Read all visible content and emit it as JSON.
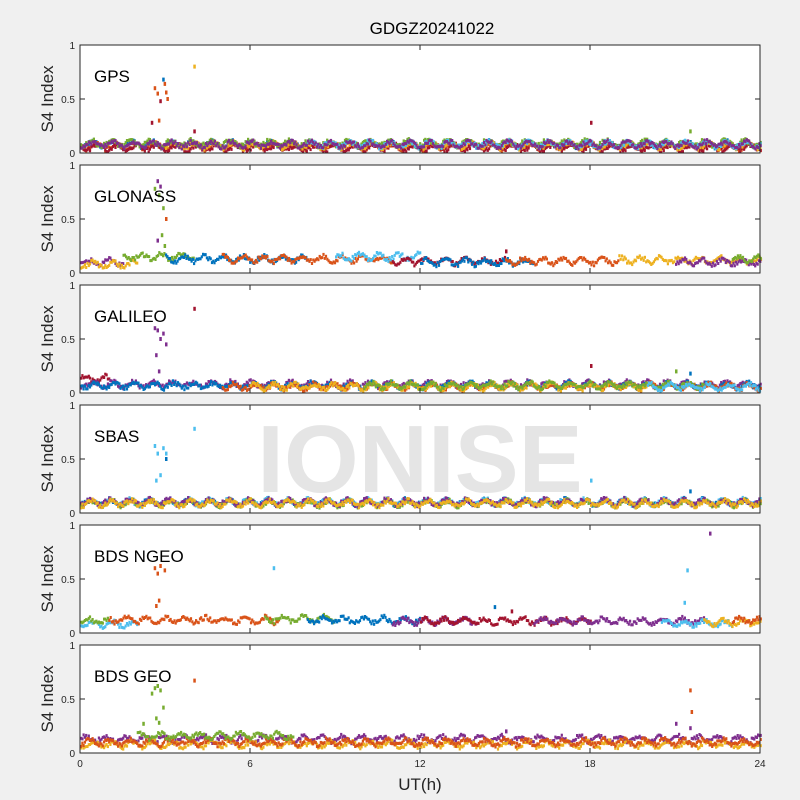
{
  "chart_data": {
    "type": "scatter",
    "title": "GDGZ20241022",
    "xlabel": "UT(h)",
    "ylabel": "S4 Index",
    "xlim": [
      0,
      24
    ],
    "ylim": [
      0,
      1
    ],
    "xticks": [
      "0",
      "6",
      "12",
      "18",
      "24"
    ],
    "xtick_values": [
      0,
      6,
      12,
      18,
      24
    ],
    "yticks": [
      "0",
      "0.5",
      "1"
    ],
    "ytick_values": [
      0,
      0.5,
      1
    ],
    "watermark": "IONISE",
    "colors": {
      "blue": "#0072BD",
      "orange": "#D95319",
      "yellow": "#EDB120",
      "purple": "#7E2F8E",
      "green": "#77AC30",
      "lightblue": "#4DBEEE",
      "darkred": "#A2142F"
    },
    "panels": [
      {
        "name": "GPS",
        "baseline_series": [
          [
            "blue",
            0,
            24,
            0.08
          ],
          [
            "orange",
            0,
            24,
            0.06
          ],
          [
            "darkred",
            0,
            24,
            0.05
          ],
          [
            "yellow",
            3,
            24,
            0.07
          ],
          [
            "green",
            0,
            24,
            0.09
          ],
          [
            "lightblue",
            8,
            24,
            0.08
          ],
          [
            "purple",
            0,
            24,
            0.08
          ]
        ],
        "spikes": [
          [
            "orange",
            2.6,
            0.6
          ],
          [
            "orange",
            2.7,
            0.55
          ],
          [
            "orange",
            2.75,
            0.3
          ],
          [
            "darkred",
            2.8,
            0.48
          ],
          [
            "blue",
            2.9,
            0.68
          ],
          [
            "orange",
            2.95,
            0.64
          ],
          [
            "orange",
            3.0,
            0.56
          ],
          [
            "orange",
            3.05,
            0.5
          ],
          [
            "darkred",
            2.5,
            0.28
          ],
          [
            "yellow",
            4.0,
            0.8
          ],
          [
            "darkred",
            4.0,
            0.2
          ],
          [
            "darkred",
            18.0,
            0.28
          ],
          [
            "green",
            21.5,
            0.2
          ]
        ]
      },
      {
        "name": "GLONASS",
        "baseline_series": [
          [
            "purple",
            0,
            1.5,
            0.1
          ],
          [
            "yellow",
            0,
            2,
            0.08
          ],
          [
            "green",
            1.5,
            4,
            0.15
          ],
          [
            "blue",
            3,
            8,
            0.13
          ],
          [
            "orange",
            5,
            11,
            0.13
          ],
          [
            "lightblue",
            9,
            12,
            0.15
          ],
          [
            "darkred",
            11,
            15,
            0.11
          ],
          [
            "blue",
            12,
            16,
            0.1
          ],
          [
            "orange",
            15,
            19,
            0.11
          ],
          [
            "yellow",
            19,
            24,
            0.12
          ],
          [
            "purple",
            21,
            24,
            0.1
          ],
          [
            "green",
            23,
            24,
            0.13
          ]
        ],
        "spikes": [
          [
            "green",
            2.6,
            0.78
          ],
          [
            "purple",
            2.7,
            0.85
          ],
          [
            "green",
            2.75,
            0.72
          ],
          [
            "purple",
            2.8,
            0.8
          ],
          [
            "green",
            2.9,
            0.6
          ],
          [
            "orange",
            3.0,
            0.5
          ],
          [
            "green",
            2.85,
            0.35
          ],
          [
            "purple",
            2.7,
            0.3
          ],
          [
            "green",
            2.95,
            0.25
          ],
          [
            "darkred",
            15.0,
            0.2
          ]
        ]
      },
      {
        "name": "GALILEO",
        "baseline_series": [
          [
            "darkred",
            0,
            1,
            0.13
          ],
          [
            "purple",
            0,
            24,
            0.08
          ],
          [
            "blue",
            0,
            24,
            0.07
          ],
          [
            "orange",
            5,
            24,
            0.06
          ],
          [
            "yellow",
            6,
            20,
            0.06
          ],
          [
            "green",
            10,
            22,
            0.07
          ],
          [
            "lightblue",
            20,
            24,
            0.06
          ]
        ],
        "spikes": [
          [
            "purple",
            2.6,
            0.6
          ],
          [
            "purple",
            2.7,
            0.58
          ],
          [
            "purple",
            2.8,
            0.5
          ],
          [
            "purple",
            2.65,
            0.35
          ],
          [
            "purple",
            2.9,
            0.55
          ],
          [
            "purple",
            3.0,
            0.45
          ],
          [
            "purple",
            2.75,
            0.2
          ],
          [
            "darkred",
            4.0,
            0.78
          ],
          [
            "darkred",
            18.0,
            0.25
          ],
          [
            "green",
            21.0,
            0.2
          ],
          [
            "blue",
            21.5,
            0.18
          ]
        ]
      },
      {
        "name": "SBAS",
        "baseline_series": [
          [
            "blue",
            0,
            24,
            0.1
          ],
          [
            "lightblue",
            0,
            24,
            0.1
          ],
          [
            "green",
            0,
            24,
            0.09
          ],
          [
            "purple",
            0,
            24,
            0.1
          ],
          [
            "yellow",
            0,
            24,
            0.09
          ]
        ],
        "spikes": [
          [
            "lightblue",
            2.6,
            0.62
          ],
          [
            "lightblue",
            2.7,
            0.55
          ],
          [
            "lightblue",
            2.9,
            0.6
          ],
          [
            "lightblue",
            3.0,
            0.55
          ],
          [
            "lightblue",
            2.8,
            0.35
          ],
          [
            "lightblue",
            2.65,
            0.3
          ],
          [
            "blue",
            3.0,
            0.5
          ],
          [
            "lightblue",
            4.0,
            0.78
          ],
          [
            "lightblue",
            18.0,
            0.3
          ],
          [
            "blue",
            21.5,
            0.2
          ]
        ]
      },
      {
        "name": "BDS NGEO",
        "baseline_series": [
          [
            "lightblue",
            0,
            2,
            0.08
          ],
          [
            "green",
            0,
            1,
            0.11
          ],
          [
            "orange",
            1,
            7,
            0.12
          ],
          [
            "green",
            6.5,
            9,
            0.13
          ],
          [
            "blue",
            8,
            12,
            0.12
          ],
          [
            "purple",
            11,
            14,
            0.11
          ],
          [
            "darkred",
            12,
            18,
            0.11
          ],
          [
            "purple",
            16,
            22,
            0.11
          ],
          [
            "lightblue",
            20.5,
            23,
            0.09
          ],
          [
            "yellow",
            22,
            24,
            0.1
          ],
          [
            "orange",
            23,
            24,
            0.12
          ]
        ],
        "spikes": [
          [
            "orange",
            2.6,
            0.6
          ],
          [
            "orange",
            2.7,
            0.55
          ],
          [
            "orange",
            2.8,
            0.62
          ],
          [
            "orange",
            2.95,
            0.58
          ],
          [
            "orange",
            2.75,
            0.3
          ],
          [
            "orange",
            2.65,
            0.25
          ],
          [
            "lightblue",
            6.8,
            0.6
          ],
          [
            "blue",
            14.6,
            0.24
          ],
          [
            "darkred",
            15.2,
            0.2
          ],
          [
            "lightblue",
            21.4,
            0.58
          ],
          [
            "lightblue",
            21.3,
            0.28
          ],
          [
            "purple",
            22.2,
            0.92
          ]
        ]
      },
      {
        "name": "BDS GEO",
        "baseline_series": [
          [
            "purple",
            0,
            24,
            0.13
          ],
          [
            "yellow",
            0,
            24,
            0.08
          ],
          [
            "orange",
            0,
            24,
            0.1
          ],
          [
            "green",
            2,
            7.5,
            0.16
          ]
        ],
        "spikes": [
          [
            "green",
            2.2,
            0.27
          ],
          [
            "green",
            2.5,
            0.55
          ],
          [
            "green",
            2.6,
            0.6
          ],
          [
            "green",
            2.7,
            0.62
          ],
          [
            "green",
            2.8,
            0.58
          ],
          [
            "green",
            2.65,
            0.32
          ],
          [
            "green",
            2.75,
            0.28
          ],
          [
            "green",
            2.9,
            0.42
          ],
          [
            "orange",
            4.0,
            0.67
          ],
          [
            "purple",
            15.0,
            0.2
          ],
          [
            "purple",
            21.0,
            0.27
          ],
          [
            "orange",
            21.5,
            0.58
          ],
          [
            "orange",
            21.55,
            0.38
          ],
          [
            "purple",
            21.5,
            0.23
          ]
        ]
      }
    ]
  }
}
